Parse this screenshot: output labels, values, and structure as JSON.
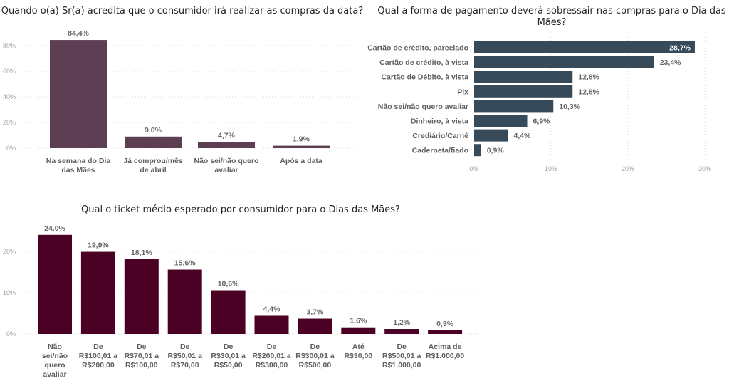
{
  "chart_data": [
    {
      "id": "timing",
      "type": "bar",
      "title": "Quando o(a) Sr(a) acredita que o consumidor irá realizar as compras da data?",
      "categories": [
        "Na semana do Dia das Mães",
        "Já comprou/mês de abril",
        "Não sei/não quero avaliar",
        "Após a data"
      ],
      "category_lines": [
        [
          "Na semana do Dia",
          "das Mães"
        ],
        [
          "Já comprou/mês",
          "de abril"
        ],
        [
          "Não sei/não quero",
          "avaliar"
        ],
        [
          "Após a data"
        ]
      ],
      "values": [
        84.4,
        9.0,
        4.7,
        1.9
      ],
      "value_labels": [
        "84,4%",
        "9,0%",
        "4,7%",
        "1,9%"
      ],
      "yticks": [
        0,
        20,
        40,
        60,
        80
      ],
      "ytick_labels": [
        "0%",
        "20%",
        "40%",
        "60%",
        "80%"
      ],
      "ylim": [
        0,
        84.4
      ],
      "xlabel": "",
      "ylabel": "",
      "grid": true,
      "color": "#5e3e52"
    },
    {
      "id": "payment",
      "type": "bar",
      "orientation": "horizontal",
      "title": "Qual a forma de pagamento deverá sobressair nas compras para o Dia das Mães?",
      "title_lines": [
        "Qual a forma de pagamento deverá sobressair nas compras para o Dia das",
        "Mães?"
      ],
      "categories": [
        "Cartão de crédito, parcelado",
        "Cartão de crédito, à vista",
        "Cartão de Débito, à vista",
        "Pix",
        "Não sei/não quero avaliar",
        "Dinheiro, à vista",
        "Crediário/Carnê",
        "Caderneta/fiado"
      ],
      "values": [
        28.7,
        23.4,
        12.8,
        12.8,
        10.3,
        6.9,
        4.4,
        0.9
      ],
      "value_labels": [
        "28,7%",
        "23,4%",
        "12,8%",
        "12,8%",
        "10,3%",
        "6,9%",
        "4,4%",
        "0,9%"
      ],
      "xticks": [
        0,
        10,
        20,
        30
      ],
      "xtick_labels": [
        "0%",
        "10%",
        "20%",
        "30%"
      ],
      "xlim": [
        0,
        30
      ],
      "xlabel": "",
      "ylabel": "",
      "grid": true,
      "color": "#374a5a"
    },
    {
      "id": "ticket",
      "type": "bar",
      "title": "Qual o ticket médio esperado por consumidor para o Dias das Mães?",
      "categories": [
        "Não sei/não quero avaliar",
        "De R$100,01 a R$200,00",
        "De R$70,01 a R$100,00",
        "De R$50,01 a R$70,00",
        "De R$30,01 a R$50,00",
        "De R$200,01 a R$300,00",
        "De R$300,01 a R$500,00",
        "Até R$30,00",
        "De R$500,01 a R$1.000,00",
        "Acima de R$1.000,00"
      ],
      "category_lines": [
        [
          "Não",
          "sei/não",
          "quero",
          "avaliar"
        ],
        [
          "De",
          "R$100,01 a",
          "R$200,00"
        ],
        [
          "De",
          "R$70,01 a",
          "R$100,00"
        ],
        [
          "De",
          "R$50,01 a",
          "R$70,00"
        ],
        [
          "De",
          "R$30,01 a",
          "R$50,00"
        ],
        [
          "De",
          "R$200,01 a",
          "R$300,00"
        ],
        [
          "De",
          "R$300,01 a",
          "R$500,00"
        ],
        [
          "Até",
          "R$30,00"
        ],
        [
          "De",
          "R$500,01 a",
          "R$1.000,00"
        ],
        [
          "Acima de",
          "R$1.000,00"
        ]
      ],
      "values": [
        24.0,
        19.9,
        18.1,
        15.6,
        10.6,
        4.4,
        3.7,
        1.6,
        1.2,
        0.9
      ],
      "value_labels": [
        "24,0%",
        "19,9%",
        "18,1%",
        "15,6%",
        "10,6%",
        "4,4%",
        "3,7%",
        "1,6%",
        "1,2%",
        "0,9%"
      ],
      "yticks": [
        0,
        10,
        20
      ],
      "ytick_labels": [
        "0%",
        "10%",
        "20%"
      ],
      "ylim": [
        0,
        24.0
      ],
      "xlabel": "",
      "ylabel": "",
      "grid": true,
      "color": "#4b0124"
    }
  ]
}
